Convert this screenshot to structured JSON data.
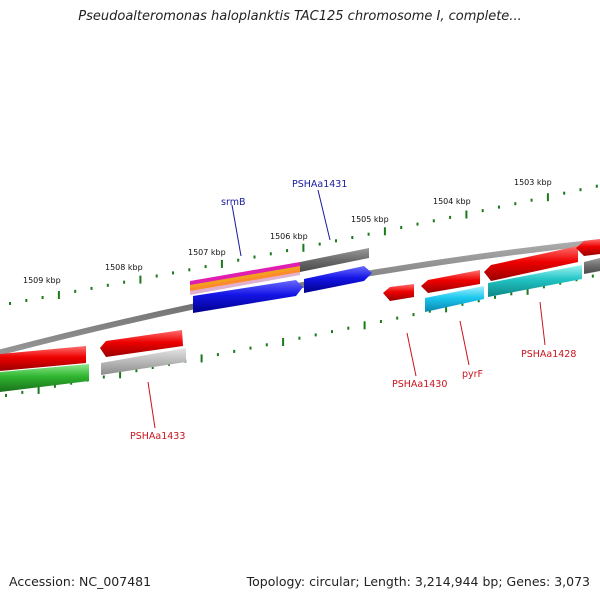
{
  "title": "Pseudoalteromonas haloplanktis TAC125 chromosome I, complete...",
  "footer": {
    "accession": "Accession: NC_007481",
    "summary": "Topology: circular; Length: 3,214,944 bp; Genes: 3,073"
  },
  "colors": {
    "backbone": "#7a7a7a",
    "ticks": "#1a7a1a",
    "forward_label": "#1a1aa0",
    "reverse_label": "#c8141e"
  },
  "ticks": [
    {
      "label": "1509 kbp"
    },
    {
      "label": "1508 kbp"
    },
    {
      "label": "1507 kbp"
    },
    {
      "label": "1506 kbp"
    },
    {
      "label": "1505 kbp"
    },
    {
      "label": "1504 kbp"
    },
    {
      "label": "1503 kbp"
    }
  ],
  "gene_labels": [
    {
      "name": "srmB",
      "strand": "forward"
    },
    {
      "name": "PSHAa1431",
      "strand": "forward"
    },
    {
      "name": "PSHAa1433",
      "strand": "reverse"
    },
    {
      "name": "PSHAa1430",
      "strand": "reverse"
    },
    {
      "name": "pyrF",
      "strand": "reverse"
    },
    {
      "name": "PSHAa1428",
      "strand": "reverse"
    }
  ]
}
